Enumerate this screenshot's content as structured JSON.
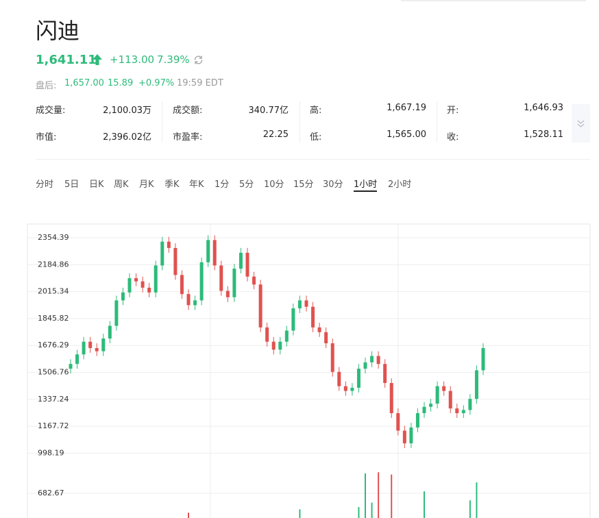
{
  "header": {
    "title": "闪迪",
    "price": "1,641.11",
    "change": "+113.00",
    "change_pct": "7.39%",
    "after_label": "盘后:",
    "after_price": "1,657.00",
    "after_change": "15.89",
    "after_pct": "+0.97%",
    "after_time": "19:59 EDT"
  },
  "stats": [
    [
      {
        "label": "成交量:",
        "value": "2,100.03万"
      },
      {
        "label": "成交额:",
        "value": "340.77亿"
      },
      {
        "label": "高:",
        "value": "1,667.19"
      },
      {
        "label": "开:",
        "value": "1,646.93"
      }
    ],
    [
      {
        "label": "市值:",
        "value": "2,396.02亿"
      },
      {
        "label": "市盈率:",
        "value": "22.25"
      },
      {
        "label": "低:",
        "value": "1,565.00"
      },
      {
        "label": "收:",
        "value": "1,528.11"
      }
    ]
  ],
  "tabs": [
    "分时",
    "5日",
    "日K",
    "周K",
    "月K",
    "季K",
    "年K",
    "1分",
    "5分",
    "10分",
    "15分",
    "30分",
    "1小时",
    "2小时"
  ],
  "active_tab": "1小时",
  "chart_data": {
    "type": "candlestick",
    "up_color": "#2dbb7a",
    "down_color": "#e0524f",
    "grid": true,
    "ylim": [
      917.9,
      2440.7
    ],
    "yticks": [
      998.19,
      1167.72,
      1337.24,
      1506.76,
      1676.29,
      1845.82,
      2015.34,
      2184.86,
      2354.39
    ],
    "volume_ylim": [
      463,
      896
    ],
    "volume_yticks": [
      682.67
    ],
    "open": [
      1530,
      1560,
      1620,
      1700,
      1660,
      1640,
      1720,
      1800,
      1960,
      2010,
      2100,
      2080,
      2040,
      2010,
      2180,
      2330,
      2290,
      2120,
      2000,
      1930,
      1960,
      2200,
      2340,
      2180,
      2020,
      1980,
      2160,
      2260,
      2110,
      2060,
      1790,
      1700,
      1650,
      1700,
      1770,
      1910,
      1960,
      1920,
      1790,
      1760,
      1690,
      1510,
      1420,
      1390,
      1410,
      1530,
      1570,
      1610,
      1560,
      1440,
      1250,
      1140,
      1060,
      1160,
      1250,
      1290,
      1310,
      1420,
      1390,
      1280,
      1250,
      1270,
      1340,
      1520
    ],
    "close": [
      1560,
      1620,
      1700,
      1660,
      1640,
      1720,
      1800,
      1960,
      2010,
      2100,
      2080,
      2040,
      2010,
      2180,
      2330,
      2290,
      2120,
      2000,
      1930,
      1960,
      2200,
      2340,
      2180,
      2020,
      1980,
      2160,
      2260,
      2110,
      2060,
      1790,
      1700,
      1650,
      1700,
      1770,
      1910,
      1960,
      1920,
      1790,
      1760,
      1690,
      1510,
      1420,
      1390,
      1410,
      1530,
      1570,
      1610,
      1560,
      1440,
      1250,
      1140,
      1060,
      1160,
      1250,
      1290,
      1310,
      1420,
      1390,
      1280,
      1250,
      1270,
      1340,
      1520,
      1660
    ],
    "high": [
      1590,
      1650,
      1730,
      1730,
      1690,
      1750,
      1830,
      1990,
      2040,
      2130,
      2130,
      2110,
      2070,
      2210,
      2360,
      2360,
      2320,
      2150,
      2030,
      1990,
      2230,
      2370,
      2370,
      2210,
      2050,
      2190,
      2290,
      2290,
      2140,
      2090,
      1820,
      1730,
      1730,
      1800,
      1940,
      1990,
      1990,
      1950,
      1820,
      1790,
      1720,
      1540,
      1450,
      1440,
      1560,
      1600,
      1640,
      1640,
      1590,
      1470,
      1280,
      1170,
      1190,
      1280,
      1320,
      1340,
      1450,
      1450,
      1420,
      1310,
      1300,
      1370,
      1550,
      1690
    ],
    "low": [
      1500,
      1530,
      1590,
      1630,
      1610,
      1610,
      1690,
      1770,
      1930,
      1980,
      2050,
      2010,
      1980,
      1980,
      2150,
      2260,
      2090,
      1970,
      1900,
      1900,
      1930,
      2170,
      2150,
      1990,
      1950,
      1950,
      2130,
      2080,
      2030,
      1760,
      1670,
      1620,
      1620,
      1670,
      1740,
      1880,
      1890,
      1760,
      1730,
      1660,
      1480,
      1390,
      1360,
      1360,
      1380,
      1500,
      1540,
      1530,
      1410,
      1220,
      1110,
      1030,
      1030,
      1130,
      1220,
      1260,
      1280,
      1360,
      1250,
      1220,
      1220,
      1240,
      1310,
      1490
    ],
    "volume": [
      350,
      350,
      350,
      350,
      350,
      350,
      350,
      350,
      350,
      350,
      350,
      350,
      350,
      350,
      350,
      350,
      350,
      350,
      510,
      350,
      350,
      350,
      350,
      350,
      350,
      350,
      350,
      350,
      350,
      350,
      350,
      350,
      350,
      350,
      350,
      540,
      350,
      350,
      350,
      350,
      350,
      350,
      350,
      350,
      560,
      860,
      600,
      870,
      350,
      850,
      350,
      350,
      350,
      350,
      700,
      350,
      350,
      350,
      350,
      350,
      350,
      620,
      780,
      350
    ]
  }
}
